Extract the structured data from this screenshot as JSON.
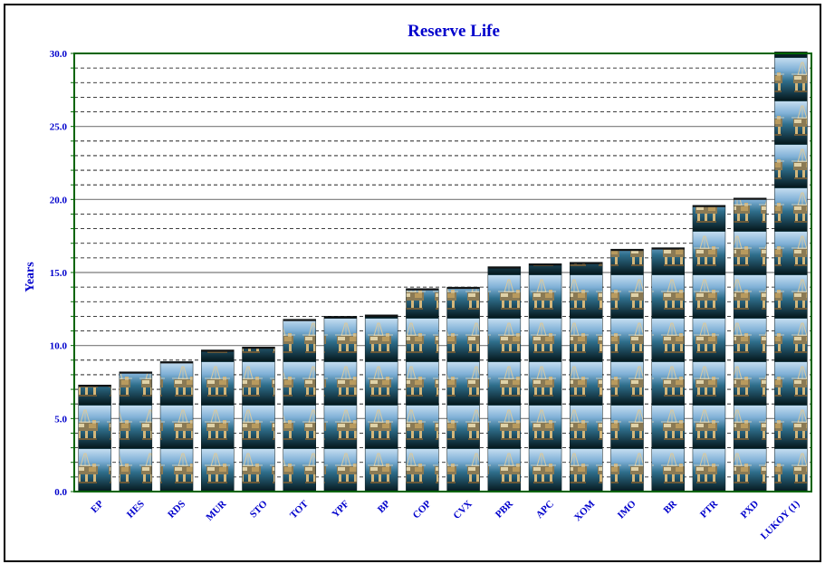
{
  "chart_data": {
    "type": "bar",
    "title": "Reserve Life",
    "ylabel": "Years",
    "xlabel": "",
    "categories": [
      "EP",
      "HES",
      "RDS",
      "MUR",
      "STO",
      "TOT",
      "YPF",
      "BP",
      "COP",
      "CVX",
      "PBR",
      "APC",
      "XOM",
      "IMO",
      "BR",
      "PTR",
      "PXD",
      "LUKOY (1)"
    ],
    "values": [
      7.3,
      8.2,
      8.9,
      9.7,
      9.9,
      11.8,
      12.0,
      12.1,
      13.9,
      14.0,
      15.4,
      15.6,
      15.7,
      16.6,
      16.7,
      19.6,
      20.1,
      30.1
    ],
    "ylim": [
      0,
      30
    ],
    "yticks": [
      "0.0",
      "5.0",
      "10.0",
      "15.0",
      "20.0",
      "25.0",
      "30.0"
    ],
    "grid": true,
    "legend": "none",
    "bar_style": "stacked oil-rig image tiles",
    "colors": {
      "title": "#0000cc",
      "axis_labels": "#0000cc",
      "plot_border": "#006400",
      "gridline": "#000000",
      "tile_sky": "#9fc6e6",
      "tile_sea": "#0a2a30",
      "rig": "#c9b48a"
    }
  }
}
